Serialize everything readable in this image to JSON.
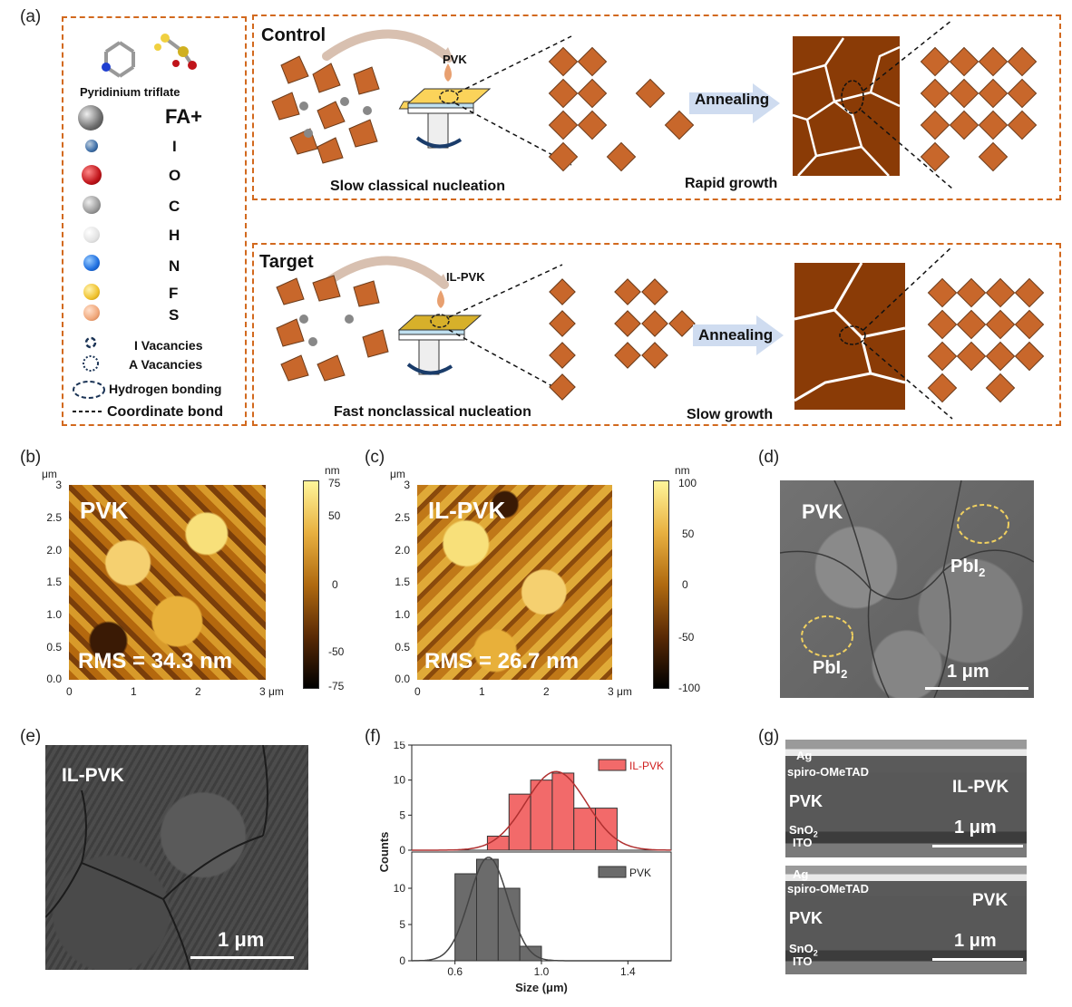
{
  "panel_labels": {
    "a": "(a)",
    "b": "(b)",
    "c": "(c)",
    "d": "(d)",
    "e": "(e)",
    "f": "(f)",
    "g": "(g)"
  },
  "legend": {
    "molecule_name": "Pyridinium triflate",
    "items": [
      {
        "symbol": "FA+",
        "color": "#6e6e6e"
      },
      {
        "symbol": "I",
        "color": "#3e6fa8"
      },
      {
        "symbol": "O",
        "color": "#c0141a"
      },
      {
        "symbol": "C",
        "color": "#9a9a9a"
      },
      {
        "symbol": "H",
        "color": "#e3e3e3"
      },
      {
        "symbol": "N",
        "color": "#1f6fe0"
      },
      {
        "symbol": "F",
        "color": "#f0c22e"
      },
      {
        "symbol": "S",
        "color": "#f0a77a"
      }
    ],
    "i_vac": "I  Vacancies",
    "a_vac": "A  Vacancies",
    "hbond": "Hydrogen bonding",
    "coord": "Coordinate bond"
  },
  "control": {
    "title": "Control",
    "drop": "PVK",
    "nucleation": "Slow classical nucleation",
    "anneal": "Annealing",
    "growth": "Rapid growth"
  },
  "target": {
    "title": "Target",
    "drop": "IL-PVK",
    "nucleation": "Fast nonclassical nucleation",
    "anneal": "Annealing",
    "growth": "Slow growth"
  },
  "afm_b": {
    "sample": "PVK",
    "rms": "RMS = 34.3 nm",
    "y_unit": "μm",
    "y_ticks": [
      "3",
      "2.5",
      "2.0",
      "1.5",
      "1.0",
      "0.5",
      "0.0"
    ],
    "x_ticks": [
      "0",
      "1",
      "2",
      "3 μm"
    ],
    "cbar_unit": "nm",
    "cbar_ticks": [
      "75",
      "50",
      "0",
      "-50",
      "-75"
    ]
  },
  "afm_c": {
    "sample": "IL-PVK",
    "rms": "RMS = 26.7 nm",
    "y_unit": "μm",
    "y_ticks": [
      "3",
      "2.5",
      "2.0",
      "1.5",
      "1.0",
      "0.5",
      "0.0"
    ],
    "x_ticks": [
      "0",
      "1",
      "2",
      "3 μm"
    ],
    "cbar_unit": "nm",
    "cbar_ticks": [
      "100",
      "50",
      "0",
      "-50",
      "-100"
    ]
  },
  "sem_d": {
    "sample": "PVK",
    "pbi_a": "PbI",
    "pbi_b": "PbI",
    "sub": "2",
    "scale": "1 μm"
  },
  "sem_e": {
    "sample": "IL-PVK",
    "scale": "1 μm"
  },
  "chart_data": {
    "type": "bar",
    "xlabel": "Size (μm)",
    "ylabel": "Counts",
    "x_ticks": [
      "0.6",
      "1.0",
      "1.4"
    ],
    "xlim": [
      0.4,
      1.6
    ],
    "panels": [
      {
        "name": "IL-PVK",
        "color": "#f26a6a",
        "ylim": [
          0,
          15
        ],
        "y_ticks": [
          "0",
          "5",
          "10",
          "15"
        ],
        "bin_starts": [
          0.75,
          0.85,
          0.95,
          1.05,
          1.15,
          1.25
        ],
        "values": [
          2,
          8,
          10,
          11,
          6,
          6
        ]
      },
      {
        "name": "PVK",
        "color": "#6b6b6b",
        "ylim": [
          0,
          15
        ],
        "y_ticks": [
          "0",
          "5",
          "10"
        ],
        "bin_starts": [
          0.6,
          0.7,
          0.8,
          0.9
        ],
        "values": [
          12,
          14,
          10,
          2
        ]
      }
    ]
  },
  "sem_g": {
    "top": {
      "ag": "Ag",
      "spiro": "spiro-OMeTAD",
      "pvk": "PVK",
      "sample": "IL-PVK",
      "sno": "SnO",
      "sub": "2",
      "ito": "ITO",
      "scale": "1 μm"
    },
    "bottom": {
      "ag": "Ag",
      "spiro": "spiro-OMeTAD",
      "pvk": "PVK",
      "sample": "PVK",
      "sno": "SnO",
      "sub": "2",
      "ito": "ITO",
      "scale": "1 μm"
    }
  }
}
